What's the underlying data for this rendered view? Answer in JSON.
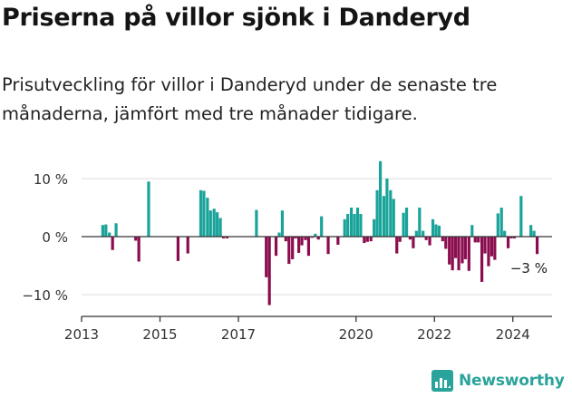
{
  "header": {
    "title": "Priserna på villor sjönk i Danderyd",
    "subtitle": "Prisutveckling för villor i Danderyd under de senaste tre månaderna, jämfört med tre månader tidigare."
  },
  "brand": {
    "name": "Newsworthy",
    "color": "#2aa39b"
  },
  "colors": {
    "positive": "#1aa39a",
    "negative": "#8b0d4f",
    "grid": "#dddddd",
    "axis": "#333333"
  },
  "chart_data": {
    "type": "bar",
    "title": "Priserna på villor sjönk i Danderyd",
    "xlabel": "",
    "ylabel": "",
    "ylim": [
      -14,
      14
    ],
    "xlim": [
      2013.0,
      2025.0
    ],
    "y_ticks": [
      {
        "value": 10,
        "label": "10 %"
      },
      {
        "value": 0,
        "label": "0 %"
      },
      {
        "value": -10,
        "label": "−10 %"
      }
    ],
    "x_ticks": [
      {
        "value": 2013.0,
        "label": "2013"
      },
      {
        "value": 2015.0,
        "label": "2015"
      },
      {
        "value": 2017.0,
        "label": "2017"
      },
      {
        "value": 2020.0,
        "label": "2020"
      },
      {
        "value": 2022.0,
        "label": "2022"
      },
      {
        "value": 2024.0,
        "label": "2024"
      }
    ],
    "last_value_label": "−3 %",
    "x": [
      2013.54,
      2013.62,
      2013.71,
      2013.79,
      2013.88,
      2014.38,
      2014.46,
      2014.71,
      2015.46,
      2015.71,
      2016.04,
      2016.12,
      2016.21,
      2016.29,
      2016.38,
      2016.46,
      2016.54,
      2016.62,
      2016.71,
      2017.46,
      2017.71,
      2017.79,
      2017.96,
      2018.04,
      2018.12,
      2018.21,
      2018.29,
      2018.38,
      2018.46,
      2018.54,
      2018.62,
      2018.71,
      2018.79,
      2018.88,
      2018.96,
      2019.04,
      2019.12,
      2019.29,
      2019.54,
      2019.71,
      2019.79,
      2019.88,
      2019.96,
      2020.04,
      2020.12,
      2020.21,
      2020.29,
      2020.38,
      2020.46,
      2020.54,
      2020.62,
      2020.71,
      2020.79,
      2020.88,
      2020.96,
      2021.04,
      2021.12,
      2021.21,
      2021.29,
      2021.38,
      2021.46,
      2021.54,
      2021.62,
      2021.71,
      2021.79,
      2021.88,
      2021.96,
      2022.04,
      2022.12,
      2022.21,
      2022.29,
      2022.38,
      2022.46,
      2022.54,
      2022.62,
      2022.71,
      2022.79,
      2022.88,
      2022.96,
      2023.04,
      2023.12,
      2023.21,
      2023.29,
      2023.38,
      2023.46,
      2023.54,
      2023.62,
      2023.71,
      2023.79,
      2023.88,
      2023.96,
      2024.04,
      2024.21,
      2024.29,
      2024.38,
      2024.46,
      2024.54,
      2024.62
    ],
    "series": [
      {
        "name": "Prisutveckling",
        "values": [
          2,
          2.1,
          0.7,
          -2.3,
          2.3,
          -0.7,
          -4.3,
          9.5,
          -4.2,
          -2.9,
          8,
          7.9,
          6.7,
          4.5,
          4.8,
          4.2,
          3.2,
          -0.3,
          -0.3,
          4.6,
          -7,
          -11.8,
          -3.3,
          0.7,
          4.5,
          -0.8,
          -4.7,
          -3.9,
          -0.3,
          -2.8,
          -1.5,
          -0.6,
          -3.3,
          -0.2,
          0.5,
          -0.5,
          3.5,
          -3,
          -1.4,
          3,
          3.9,
          5,
          3.9,
          5,
          3.9,
          -1.1,
          -0.9,
          -0.8,
          3,
          8,
          13,
          7,
          10,
          8,
          6.5,
          -2.9,
          -0.9,
          4.1,
          5,
          -0.5,
          -2,
          1,
          5,
          1,
          -0.6,
          -1.5,
          3,
          2.1,
          1.9,
          -0.8,
          -2.1,
          -4.8,
          -5.8,
          -3.7,
          -5.8,
          -4.6,
          -3.9,
          -5.9,
          2,
          -1,
          -1,
          -7.8,
          -2.9,
          -5.1,
          -3.4,
          -4,
          4,
          5,
          1,
          -2,
          -0.3,
          -0.3,
          7,
          0,
          0,
          2,
          1,
          -3
        ]
      }
    ]
  }
}
